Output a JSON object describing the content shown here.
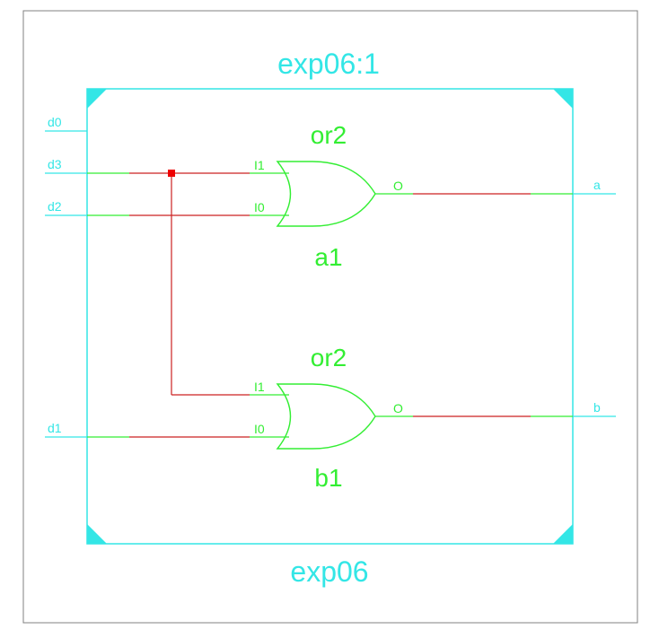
{
  "colors": {
    "frame": "#808080",
    "module": "#33e6e6",
    "gate": "#33ee33",
    "net": "#cc2222",
    "io_wire": "#33e6e6",
    "pin_wire": "#33ee33",
    "junction": "#ee0000"
  },
  "module": {
    "instance_label": "exp06:1",
    "name_label": "exp06"
  },
  "ports": {
    "inputs": [
      "d0",
      "d3",
      "d2",
      "d1"
    ],
    "outputs": [
      "a",
      "b"
    ]
  },
  "gates": [
    {
      "type_label": "or2",
      "instance_label": "a1",
      "in1": "I1",
      "in0": "I0",
      "out": "O"
    },
    {
      "type_label": "or2",
      "instance_label": "b1",
      "in1": "I1",
      "in0": "I0",
      "out": "O"
    }
  ]
}
